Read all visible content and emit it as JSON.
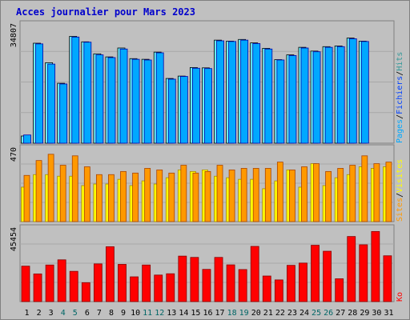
{
  "chart_data": {
    "title": "Acces journalier pour Mars 2023",
    "days": [
      1,
      2,
      3,
      4,
      5,
      6,
      7,
      8,
      9,
      10,
      11,
      12,
      13,
      14,
      15,
      16,
      17,
      18,
      19,
      20,
      21,
      22,
      23,
      24,
      25,
      26,
      27,
      28,
      29,
      30,
      31
    ],
    "weekend_days": [
      4,
      5,
      11,
      12,
      18,
      19,
      25,
      26
    ],
    "colors": {
      "pages": "#66f0ff",
      "hits": "#339999",
      "files": "#00a8ff",
      "sites": "#ff9900",
      "visits": "#ffff00",
      "kb": "#ff0000",
      "weekday_label": "#000000",
      "weekend_label": "#006666"
    },
    "panels": [
      {
        "type": "bar",
        "max_label": "34807",
        "ymax": 34807,
        "legend": [
          {
            "text": "Pages",
            "color": "#00a8ff"
          },
          {
            "text": "Fichiers",
            "color": "#0040ff"
          },
          {
            "text": "Hits",
            "color": "#339999"
          }
        ],
        "series": [
          {
            "key": "pages",
            "values": [
              2100,
              29200,
              23500,
              17500,
              31200,
              29600,
              26100,
              25200,
              27800,
              24700,
              24500,
              26600,
              18900,
              19600,
              22100,
              22000,
              30100,
              29800,
              30300,
              29300,
              27700,
              24400,
              25800,
              28000,
              26900,
              28200,
              28400,
              30700,
              29800,
              0,
              0
            ]
          },
          {
            "key": "files",
            "values": [
              2400,
              29000,
              23100,
              17300,
              31000,
              29500,
              25800,
              25000,
              27500,
              24500,
              24300,
              26400,
              18700,
              19500,
              21900,
              21800,
              29900,
              29700,
              30100,
              29100,
              27500,
              24300,
              25600,
              27800,
              26700,
              28000,
              28200,
              30500,
              29700,
              0,
              0
            ]
          }
        ]
      },
      {
        "type": "bar",
        "max_label": "470",
        "ymax": 470,
        "legend": [
          {
            "text": "Sites",
            "color": "#ff9900"
          },
          {
            "text": "Visites",
            "color": "#ffff00"
          }
        ],
        "series": [
          {
            "key": "visits",
            "values": [
              220,
              300,
              300,
              290,
              290,
              230,
              240,
              240,
              270,
              230,
              260,
              240,
              280,
              330,
              320,
              330,
              290,
              280,
              270,
              270,
              210,
              260,
              330,
              220,
              370,
              230,
              280,
              300,
              350,
              340,
              350
            ]
          },
          {
            "key": "sites",
            "values": [
              295,
              390,
              430,
              360,
              420,
              350,
              300,
              300,
              320,
              310,
              340,
              330,
              310,
              360,
              310,
              320,
              360,
              330,
              340,
              340,
              340,
              380,
              330,
              350,
              370,
              320,
              340,
              360,
              420,
              370,
              380
            ]
          }
        ]
      },
      {
        "type": "bar",
        "max_label": "45454",
        "ymax": 45454,
        "legend": [
          {
            "text": "Ko",
            "color": "#ff0000"
          }
        ],
        "series": [
          {
            "key": "kb",
            "values": [
              21900,
              17100,
              22600,
              25800,
              18700,
              11700,
              23300,
              33900,
              23000,
              15300,
              22600,
              16400,
              17200,
              28100,
              27300,
              19900,
              27300,
              22700,
              19800,
              34100,
              15800,
              13400,
              22400,
              23800,
              34800,
              31100,
              14100,
              40200,
              35100,
              43300,
              28300
            ]
          }
        ]
      }
    ]
  }
}
